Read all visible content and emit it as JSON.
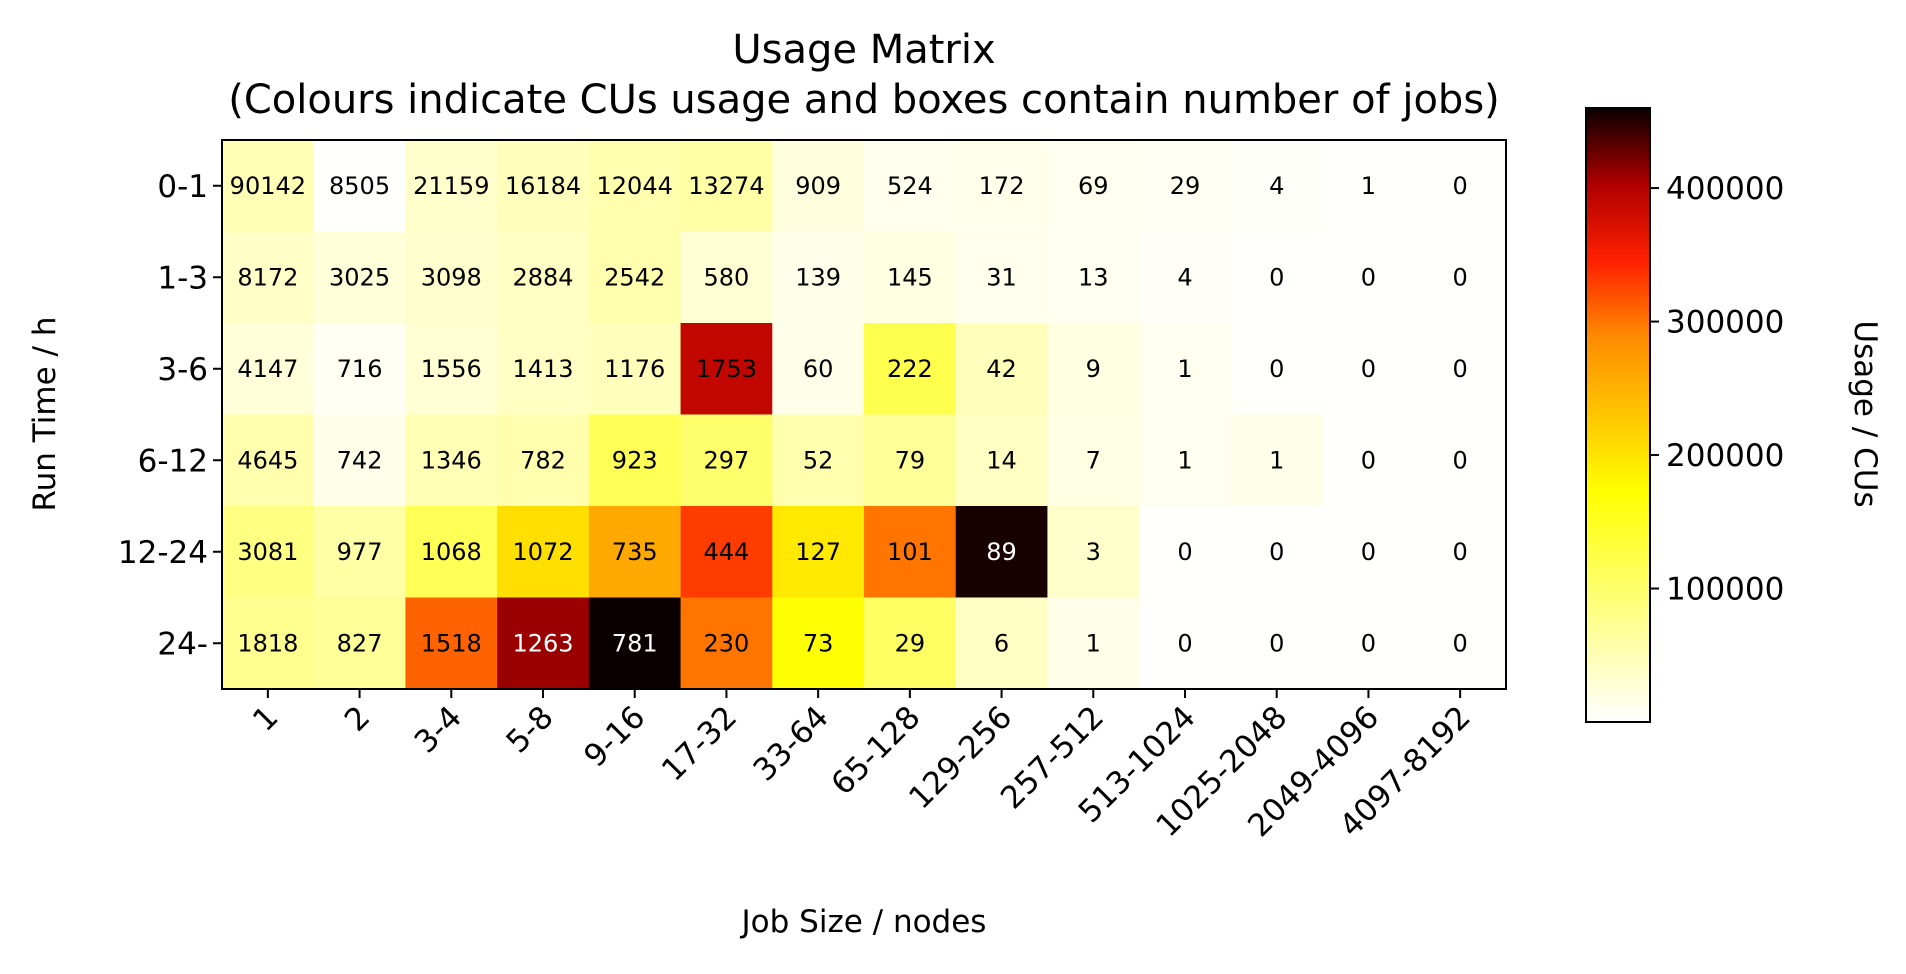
{
  "chart_data": {
    "type": "heatmap",
    "title": "Usage Matrix",
    "subtitle": "(Colours indicate CUs usage and boxes contain number of jobs)",
    "xlabel": "Job Size / nodes",
    "ylabel": "Run Time / h",
    "x_categories": [
      "1",
      "2",
      "3-4",
      "5-8",
      "9-16",
      "17-32",
      "33-64",
      "65-128",
      "129-256",
      "257-512",
      "513-1024",
      "1025-2048",
      "2049-4096",
      "4097-8192"
    ],
    "y_categories": [
      "0-1",
      "1-3",
      "3-6",
      "6-12",
      "12-24",
      "24-"
    ],
    "job_counts": [
      [
        "90142",
        "8505",
        "21159",
        "16184",
        "12044",
        "13274",
        "909",
        "524",
        "172",
        "69",
        "29",
        "4",
        "1",
        "0"
      ],
      [
        "8172",
        "3025",
        "3098",
        "2884",
        "2542",
        "580",
        "139",
        "145",
        "31",
        "13",
        "4",
        "0",
        "0",
        "0"
      ],
      [
        "4147",
        "716",
        "1556",
        "1413",
        "1176",
        "1753",
        "60",
        "222",
        "42",
        "9",
        "1",
        "0",
        "0",
        "0"
      ],
      [
        "4645",
        "742",
        "1346",
        "782",
        "923",
        "297",
        "52",
        "79",
        "14",
        "7",
        "1",
        "1",
        "0",
        "0"
      ],
      [
        "3081",
        "977",
        "1068",
        "1072",
        "735",
        "444",
        "127",
        "101",
        "89",
        "3",
        "0",
        "0",
        "0",
        "0"
      ],
      [
        "1818",
        "827",
        "1518",
        "1263",
        "781",
        "230",
        "73",
        "29",
        "6",
        "1",
        "0",
        "0",
        "0",
        "0"
      ]
    ],
    "usage_cus": [
      [
        50000,
        3000,
        35000,
        45000,
        55000,
        60000,
        22000,
        12000,
        14000,
        10000,
        8000,
        4000,
        3000,
        2000
      ],
      [
        38000,
        25000,
        33000,
        40000,
        55000,
        30000,
        15000,
        20000,
        12000,
        10000,
        5000,
        2000,
        2000,
        2000
      ],
      [
        25000,
        8000,
        30000,
        40000,
        45000,
        390000,
        15000,
        120000,
        45000,
        20000,
        10000,
        2000,
        2000,
        2000
      ],
      [
        55000,
        15000,
        50000,
        55000,
        115000,
        100000,
        55000,
        70000,
        40000,
        18000,
        10000,
        15000,
        2000,
        2000
      ],
      [
        85000,
        60000,
        115000,
        205000,
        260000,
        330000,
        195000,
        300000,
        455000,
        35000,
        2000,
        2000,
        2000,
        2000
      ],
      [
        75000,
        70000,
        310000,
        410000,
        460000,
        300000,
        170000,
        105000,
        40000,
        15000,
        2000,
        2000,
        2000,
        2000
      ]
    ],
    "colorbar": {
      "label": "Usage / CUs",
      "min": 0,
      "max": 460000,
      "ticks": [
        100000,
        200000,
        300000,
        400000
      ],
      "tick_labels": [
        "100000",
        "200000",
        "300000",
        "400000"
      ],
      "colormap": "hot_r"
    },
    "grid": false
  }
}
